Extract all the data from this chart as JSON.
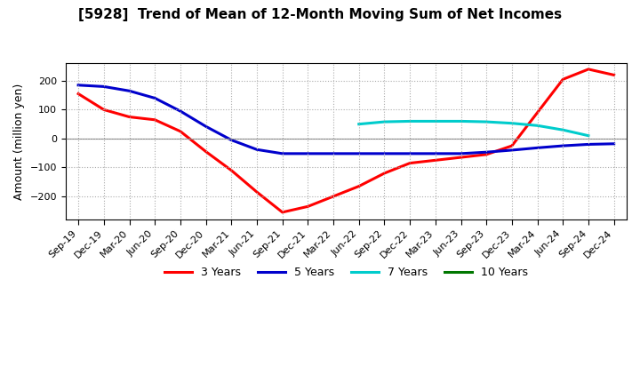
{
  "title": "[5928]  Trend of Mean of 12-Month Moving Sum of Net Incomes",
  "ylabel": "Amount (million yen)",
  "background_color": "#ffffff",
  "grid_color": "#aaaaaa",
  "x_labels": [
    "Sep-19",
    "Dec-19",
    "Mar-20",
    "Jun-20",
    "Sep-20",
    "Dec-20",
    "Mar-21",
    "Jun-21",
    "Sep-21",
    "Dec-21",
    "Mar-22",
    "Jun-22",
    "Sep-22",
    "Dec-22",
    "Mar-23",
    "Jun-23",
    "Sep-23",
    "Dec-23",
    "Mar-24",
    "Jun-24",
    "Sep-24",
    "Dec-24"
  ],
  "series_3y": [
    155,
    100,
    75,
    65,
    25,
    -45,
    -110,
    -185,
    -255,
    -235,
    -200,
    -165,
    -120,
    -85,
    -75,
    -65,
    -55,
    -25,
    90,
    205,
    240,
    220
  ],
  "series_5y": [
    185,
    180,
    165,
    140,
    95,
    42,
    -5,
    -38,
    -52,
    -52,
    -52,
    -52,
    -52,
    -52,
    -52,
    -52,
    -47,
    -40,
    -32,
    -25,
    -20,
    -18
  ],
  "series_7y": [
    null,
    null,
    null,
    null,
    null,
    null,
    null,
    null,
    null,
    null,
    null,
    50,
    58,
    60,
    60,
    60,
    58,
    53,
    45,
    30,
    10,
    null
  ],
  "series_10y": [
    null,
    null,
    null,
    null,
    null,
    null,
    null,
    null,
    null,
    null,
    null,
    null,
    null,
    null,
    null,
    null,
    null,
    null,
    null,
    null,
    null,
    null
  ],
  "color_3y": "#ff0000",
  "color_5y": "#0000cc",
  "color_7y": "#00cccc",
  "color_10y": "#007700",
  "ylim": [
    -280,
    260
  ],
  "yticks": [
    -200,
    -100,
    0,
    100,
    200
  ]
}
